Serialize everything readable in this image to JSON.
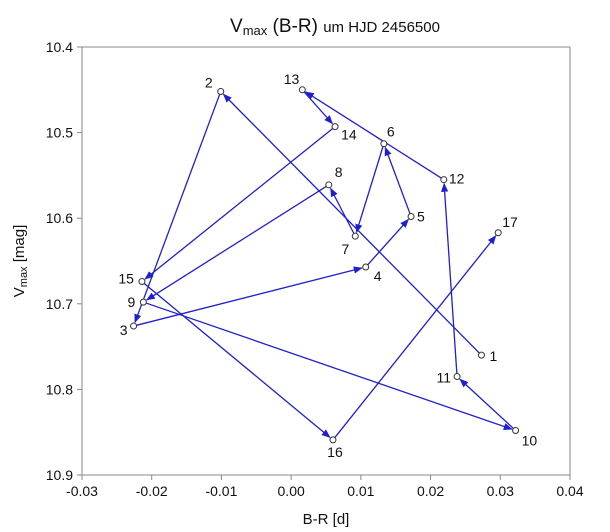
{
  "chart_data": {
    "type": "scatter",
    "title": {
      "main": "V",
      "sub": "max",
      "rest": " (B-R) ",
      "small": "um HJD 2456500"
    },
    "xlabel": "B-R [d]",
    "ylabel": {
      "main": "V",
      "sub": "max",
      "rest": " [mag]"
    },
    "xlim": [
      -0.03,
      0.04
    ],
    "ylim": [
      10.4,
      10.9
    ],
    "y_inverted": true,
    "x_ticks": [
      "-0.03",
      "-0.02",
      "-0.01",
      "0.00",
      "0.01",
      "0.02",
      "0.03",
      "0.04"
    ],
    "y_ticks": [
      "10.4",
      "10.5",
      "10.6",
      "10.7",
      "10.8",
      "10.9"
    ],
    "grid": false,
    "line_color": "#1f1fd0",
    "marker": "open-circle",
    "points": [
      {
        "label": "1",
        "x": 0.0273,
        "y": 10.76
      },
      {
        "label": "2",
        "x": -0.0101,
        "y": 10.452
      },
      {
        "label": "3",
        "x": -0.0226,
        "y": 10.726
      },
      {
        "label": "4",
        "x": 0.0107,
        "y": 10.657
      },
      {
        "label": "5",
        "x": 0.0172,
        "y": 10.598
      },
      {
        "label": "6",
        "x": 0.0133,
        "y": 10.513
      },
      {
        "label": "7",
        "x": 0.0092,
        "y": 10.621
      },
      {
        "label": "8",
        "x": 0.0054,
        "y": 10.561
      },
      {
        "label": "9",
        "x": -0.0212,
        "y": 10.698
      },
      {
        "label": "10",
        "x": 0.0322,
        "y": 10.848
      },
      {
        "label": "11",
        "x": 0.0238,
        "y": 10.785
      },
      {
        "label": "12",
        "x": 0.0219,
        "y": 10.555
      },
      {
        "label": "13",
        "x": 0.0016,
        "y": 10.45
      },
      {
        "label": "14",
        "x": 0.0063,
        "y": 10.493
      },
      {
        "label": "15",
        "x": -0.0214,
        "y": 10.674
      },
      {
        "label": "16",
        "x": 0.006,
        "y": 10.859
      },
      {
        "label": "17",
        "x": 0.0297,
        "y": 10.617
      }
    ]
  }
}
